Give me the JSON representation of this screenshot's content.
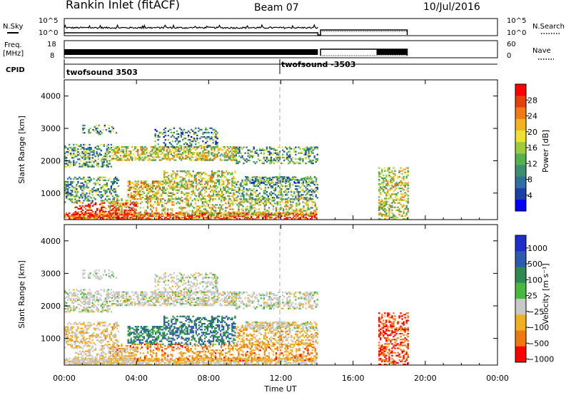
{
  "header": {
    "station": "Rankin Inlet (fitACF)",
    "beam": "Beam 07",
    "date": "10/Jul/2016"
  },
  "panels": {
    "nsky": {
      "left_label": "N.Sky",
      "right_label": "N.Search",
      "ticks_left": [
        "10^5",
        "10^0"
      ],
      "ticks_right": [
        "10^5",
        "10^0"
      ]
    },
    "freq": {
      "left_label_1": "Freq.",
      "left_label_2": "[MHz]",
      "right_label": "Nave",
      "ticks_left": [
        "18",
        "8"
      ],
      "ticks_right": [
        "60",
        "0"
      ]
    },
    "cpid": {
      "label": "CPID",
      "segments": [
        "twofsound 3503",
        "twofsound -3503"
      ]
    }
  },
  "icons": {
    "dotted_legend_1": "dotted-line-icon",
    "dotted_legend_2": "dotted-line-icon"
  },
  "chart_data": [
    {
      "type": "heatmap",
      "title": "",
      "xlabel": "",
      "ylabel": "Slant Range [km]",
      "xlim": [
        "00:00",
        "24:00"
      ],
      "ylim": [
        180,
        4500
      ],
      "yticks": [
        "1000",
        "2000",
        "3000",
        "4000"
      ],
      "colorbar": {
        "label": "Power [dB]",
        "ticks": [
          "4",
          "8",
          "12",
          "16",
          "20",
          "24",
          "28"
        ],
        "colors": [
          "#0000ff",
          "#1c3fa8",
          "#2e6fa0",
          "#3d8f6f",
          "#56b04e",
          "#9dcc3a",
          "#f0e030",
          "#f4b31c",
          "#f07a14",
          "#e8400a",
          "#ff0000"
        ]
      }
    },
    {
      "type": "heatmap",
      "title": "",
      "xlabel": "Time UT",
      "ylabel": "Slant Range [km]",
      "xlim": [
        "00:00",
        "24:00"
      ],
      "ylim": [
        180,
        4500
      ],
      "xticks": [
        "00:00",
        "04:00",
        "08:00",
        "12:00",
        "16:00",
        "20:00",
        "00:00"
      ],
      "yticks": [
        "1000",
        "2000",
        "3000",
        "4000"
      ],
      "colorbar": {
        "label": "Velocity [m s⁻¹]",
        "ticks": [
          "1000",
          "500",
          "100",
          "25",
          "−25",
          "−100",
          "−500",
          "−1000"
        ],
        "colors": [
          "#1c2fc8",
          "#2e5ab0",
          "#2e8a4e",
          "#48b83e",
          "#c8c8c8",
          "#f0b020",
          "#f07810",
          "#ff0000"
        ]
      }
    }
  ]
}
